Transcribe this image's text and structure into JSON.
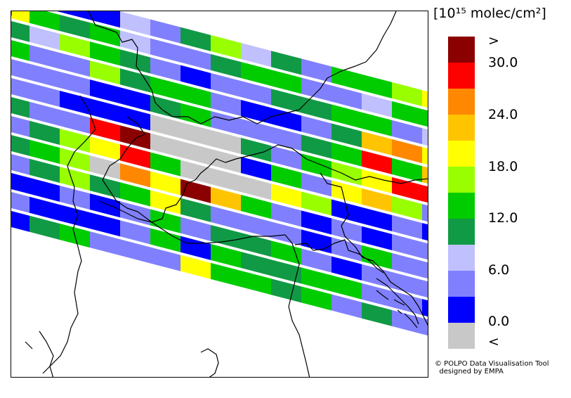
{
  "legend": {
    "unit": "[10¹⁵ molec/cm²]",
    "bins": [
      {
        "label": "<",
        "color": "#c8c8c8"
      },
      {
        "label": "",
        "color": "#0000ff"
      },
      {
        "label": "",
        "color": "#8080ff"
      },
      {
        "label": "",
        "color": "#c0c0ff"
      },
      {
        "label": "",
        "color": "#119a45"
      },
      {
        "label": "",
        "color": "#00cc00"
      },
      {
        "label": "",
        "color": "#99ff00"
      },
      {
        "label": "",
        "color": "#ffff00"
      },
      {
        "label": "",
        "color": "#ffc400"
      },
      {
        "label": "",
        "color": "#ff8800"
      },
      {
        "label": "",
        "color": "#ff0000"
      },
      {
        "label": ">",
        "color": "#8b0000"
      }
    ],
    "ticks": [
      "0.0",
      "6.0",
      "12.0",
      "18.0",
      "24.0",
      "30.0"
    ],
    "over_label": ">",
    "under_label": "<"
  },
  "credit": {
    "line1": "© POLPO Data Visualisation Tool",
    "line2": "designed by EMPA"
  },
  "swath_colors": [
    [
      "a",
      "a",
      "b",
      "b",
      "b",
      "d",
      "c",
      "e",
      "g",
      "d",
      "e",
      "c",
      "f",
      "f",
      "g",
      "h"
    ],
    [
      "g",
      "h",
      "f",
      "e",
      "f",
      "d",
      "c",
      "c",
      "e",
      "f",
      "f",
      "c",
      "c",
      "d",
      "f",
      "f"
    ],
    [
      "x",
      "e",
      "d",
      "g",
      "f",
      "e",
      "c",
      "b",
      "c",
      "c",
      "e",
      "e",
      "f",
      "f",
      "c",
      "d"
    ],
    [
      "g",
      "f",
      "c",
      "c",
      "g",
      "e",
      "f",
      "f",
      "c",
      "b",
      "b",
      "c",
      "e",
      "i",
      "j",
      "h"
    ],
    [
      "f",
      "c",
      "c",
      "c",
      "b",
      "b",
      "e",
      "f",
      "c",
      "c",
      "c",
      "e",
      "f",
      "k",
      "f",
      "i"
    ],
    [
      "e",
      "c",
      "c",
      "b",
      "b",
      "b",
      "a",
      "a",
      "a",
      "e",
      "c",
      "f",
      "g",
      "h",
      "k",
      "k"
    ],
    [
      "c",
      "e",
      "c",
      "c",
      "k",
      "x",
      "a",
      "a",
      "a",
      "b",
      "f",
      "c",
      "h",
      "i",
      "g",
      "c"
    ],
    [
      "b",
      "c",
      "e",
      "g",
      "h",
      "k",
      "f",
      "a",
      "a",
      "a",
      "h",
      "g",
      "b",
      "b",
      "c",
      "b"
    ],
    [
      "c",
      "e",
      "f",
      "g",
      "a",
      "j",
      "h",
      "x",
      "i",
      "f",
      "c",
      "b",
      "c",
      "b",
      "c",
      "c"
    ],
    [
      "b",
      "c",
      "e",
      "g",
      "e",
      "f",
      "h",
      "e",
      "c",
      "c",
      "c",
      "b",
      "c",
      "f",
      "c",
      "c"
    ],
    [
      "c",
      "b",
      "b",
      "c",
      "b",
      "c",
      "f",
      "c",
      "e",
      "e",
      "f",
      "c",
      "b",
      "c",
      "c",
      "c"
    ],
    [
      "c",
      "c",
      "b",
      "b",
      "b",
      "c",
      "f",
      "b",
      "f",
      "e",
      "e",
      "f",
      "f",
      "c",
      "c",
      "b"
    ],
    [
      "c",
      "b",
      "e",
      "f",
      "c",
      "c",
      "c",
      "h",
      "f",
      "f",
      "e",
      "f",
      "c",
      "e",
      "c",
      "c"
    ]
  ]
}
